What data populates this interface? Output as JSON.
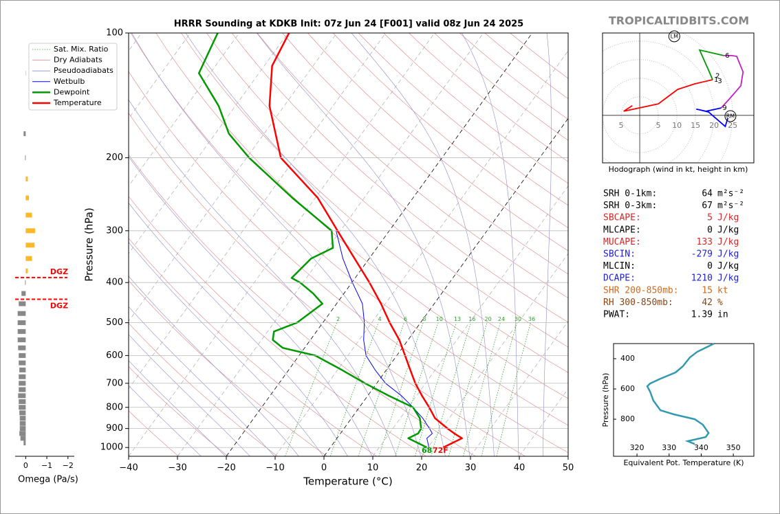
{
  "header": {
    "brand": "TROPICALTIDBITS.COM"
  },
  "chart_data": [
    {
      "type": "skewt",
      "title": "HRRR Sounding at KDKB Init: 07z Jun 24 [F001] valid 08z Jun 24 2025",
      "x_label": "Temperature (°C)",
      "y_label": "Pressure (hPa)",
      "log_y": true,
      "xlim": [
        -40,
        50
      ],
      "ylim": [
        1050,
        100
      ],
      "xticks": [
        {
          "value": -40,
          "label": "−40"
        },
        {
          "value": -30,
          "label": "−30"
        },
        {
          "value": -20,
          "label": "−20"
        },
        {
          "value": -10,
          "label": "−10"
        },
        0,
        10,
        20,
        30,
        40,
        50
      ],
      "yticks": [
        100,
        200,
        300,
        400,
        500,
        600,
        700,
        800,
        900,
        1000
      ],
      "grid": true,
      "reference_lines": [
        {
          "name": "Sat. Mix. Ratio",
          "color": "#2ca02c"
        },
        {
          "name": "Dry Adiabats",
          "color": "#e08080"
        },
        {
          "name": "Pseudoadiabats",
          "color": "#8a8ad0"
        }
      ],
      "mixing_ratio_lines": [
        2,
        4,
        6,
        8,
        10,
        13,
        16,
        20,
        24,
        30,
        36
      ],
      "series": [
        {
          "name": "Wetbulb",
          "color": "#0000ff",
          "pressure": [
            1000,
            950,
            925,
            900,
            850,
            800,
            750,
            700,
            650,
            600,
            550,
            500,
            450,
            400,
            350,
            300
          ],
          "values": [
            20.2,
            18.4,
            18.8,
            17.5,
            14.6,
            11.0,
            6.9,
            1.8,
            -2.3,
            -6.3,
            -9.1,
            -11.5,
            -14.7,
            -19.9,
            -25.4,
            -30.9
          ]
        },
        {
          "name": "Dewpoint",
          "color": "#009900",
          "pressure": [
            1000,
            950,
            925,
            900,
            850,
            800,
            750,
            700,
            650,
            600,
            575,
            550,
            525,
            500,
            450,
            425,
            400,
            390,
            350,
            330,
            300,
            250,
            200,
            175,
            150,
            125,
            100
          ],
          "values": [
            19.8,
            14.6,
            15.9,
            15.8,
            14.0,
            11.0,
            4.3,
            -2.4,
            -9.1,
            -16.7,
            -24.5,
            -27.7,
            -28.7,
            -25.3,
            -22.9,
            -26.3,
            -30.6,
            -33.0,
            -31.9,
            -29.0,
            -31.8,
            -44.7,
            -59.5,
            -67.2,
            -73.4,
            -82.3,
            -84.4
          ]
        },
        {
          "name": "Temperature",
          "color": "#ff0000",
          "pressure": [
            1000,
            950,
            925,
            900,
            850,
            800,
            750,
            700,
            650,
            600,
            550,
            500,
            450,
            400,
            350,
            300,
            250,
            200,
            150,
            120,
            100
          ],
          "values": [
            23.1,
            25.6,
            23.3,
            21.2,
            17.1,
            14.3,
            11.1,
            7.9,
            4.9,
            1.7,
            -1.8,
            -6.3,
            -10.9,
            -16.4,
            -23.0,
            -30.6,
            -39.5,
            -53.0,
            -63.0,
            -68.4,
            -69.8
          ]
        }
      ],
      "surface_labels": {
        "dewpoint": "68",
        "temperature": "72F"
      }
    },
    {
      "type": "omega",
      "x_label": "Omega (Pa/s)",
      "xlim": [
        0.5,
        -2.3
      ],
      "ylim": [
        1050,
        100
      ],
      "xticks": [
        0,
        {
          "value": -1,
          "label": "−1"
        },
        {
          "value": -2,
          "label": "−2"
        }
      ],
      "positive_color": "#888888",
      "negative_color": "#fbb829",
      "pressure": [
        125,
        175,
        200,
        225,
        250,
        275,
        300,
        325,
        350,
        375,
        400,
        425,
        450,
        475,
        500,
        525,
        550,
        575,
        600,
        625,
        650,
        675,
        700,
        725,
        750,
        775,
        800,
        825,
        850,
        875,
        900,
        925,
        950,
        975
      ],
      "values": [
        -0.02,
        0.1,
        0.03,
        -0.1,
        -0.15,
        -0.3,
        -0.45,
        -0.42,
        -0.3,
        -0.1,
        0.03,
        0.2,
        0.33,
        0.38,
        0.38,
        0.38,
        0.38,
        0.36,
        0.33,
        0.33,
        0.3,
        0.33,
        0.33,
        0.33,
        0.36,
        0.33,
        0.33,
        0.3,
        0.28,
        0.28,
        0.28,
        0.3,
        0.25,
        0.1
      ],
      "dgz_lines": [
        {
          "pressure": 389,
          "label": "DGZ"
        },
        {
          "pressure": 439,
          "label": "DGZ"
        }
      ],
      "dgz_color": "#ff0000"
    },
    {
      "type": "hodograph",
      "caption": "Hodograph (wind in kt, height in km)",
      "xlim": [
        -10,
        30.7
      ],
      "ylim": [
        -12.8,
        22.2
      ],
      "xticks": [
        {
          "value": -5,
          "label": "5"
        },
        5,
        10,
        15,
        20,
        25
      ],
      "segments": [
        {
          "color": "#ff0000",
          "u": [
            -2.0,
            -4.3,
            5.0,
            10.2,
            14.8,
            19.6
          ],
          "v": [
            2.6,
            1.1,
            3.1,
            7.0,
            8.5,
            9.6
          ]
        },
        {
          "color": "#009900",
          "u": [
            19.6,
            18.5,
            16.1,
            22.6
          ],
          "v": [
            9.6,
            12.2,
            17.6,
            16.1
          ]
        },
        {
          "color": "#c020c0",
          "u": [
            22.6,
            24.8,
            26.1,
            27.8,
            27.2,
            24.1,
            21.9
          ],
          "v": [
            16.1,
            16.1,
            15.9,
            11.7,
            8.0,
            4.4,
            2.0
          ]
        },
        {
          "color": "#0000ff",
          "u": [
            21.9,
            17.8,
            15.2,
            18.5,
            23.0,
            23.7
          ],
          "v": [
            2.0,
            1.1,
            1.7,
            0.9,
            -3.0,
            -0.7
          ]
        }
      ],
      "height_labels": [
        {
          "label": "1",
          "u": 19.6,
          "v": 9.6
        },
        {
          "label": "2",
          "u": 20.0,
          "v": 10.6
        },
        {
          "label": "3",
          "u": 20.6,
          "v": 9.2
        },
        {
          "label": "6",
          "u": 22.6,
          "v": 16.1
        },
        {
          "label": "9",
          "u": 21.9,
          "v": 2.0
        }
      ],
      "storm_motions": [
        {
          "label": "LM",
          "u": 9.3,
          "v": 21.3
        },
        {
          "label": "RM",
          "u": 24.4,
          "v": -0.2
        }
      ]
    },
    {
      "type": "thetae",
      "x_label": "Equivalent Pot. Temperature (K)",
      "y_label": "Pressure (hPa)",
      "xlim": [
        312.7,
        356.4
      ],
      "ylim": [
        1045,
        300
      ],
      "xticks": [
        320,
        330,
        340,
        350
      ],
      "yticks": [
        400,
        600,
        800
      ],
      "color": "#3399b0",
      "pressure": [
        300,
        354,
        391,
        450,
        491,
        532,
        564,
        582,
        618,
        677,
        741,
        768,
        800,
        836,
        891,
        918,
        945,
        964
      ],
      "values": [
        344.0,
        338.8,
        336.5,
        334.3,
        332.0,
        327.3,
        324.1,
        323.2,
        324.1,
        325.1,
        327.3,
        331.5,
        338.0,
        340.5,
        342.3,
        341.4,
        335.8,
        338.0
      ]
    }
  ],
  "stats": [
    {
      "label": "SRH 0-1km:",
      "value": 64,
      "unit": "m²s⁻²",
      "color": "#000000"
    },
    {
      "label": "SRH 0-3km:",
      "value": 67,
      "unit": "m²s⁻²",
      "color": "#000000"
    },
    {
      "label": "SBCAPE:",
      "value": 5,
      "unit": "J/kg",
      "color": "#d62728"
    },
    {
      "label": "MLCAPE:",
      "value": 0,
      "unit": "J/kg",
      "color": "#000000"
    },
    {
      "label": "MUCAPE:",
      "value": 133,
      "unit": "J/kg",
      "color": "#d62728"
    },
    {
      "label": "SBCIN:",
      "value": -279,
      "unit": "J/kg",
      "color": "#2020d0"
    },
    {
      "label": "MLCIN:",
      "value": 0,
      "unit": "J/kg",
      "color": "#000000"
    },
    {
      "label": "DCAPE:",
      "value": 1210,
      "unit": "J/kg",
      "color": "#2020d0"
    },
    {
      "label": "SHR 200-850mb:",
      "value": 15,
      "unit": "kt",
      "color": "#d2691e"
    },
    {
      "label": "RH 300-850mb:",
      "value": 42,
      "unit": "%",
      "color": "#8b4513"
    },
    {
      "label": "PWAT:",
      "value": 1.39,
      "unit": "in",
      "color": "#000000"
    }
  ]
}
